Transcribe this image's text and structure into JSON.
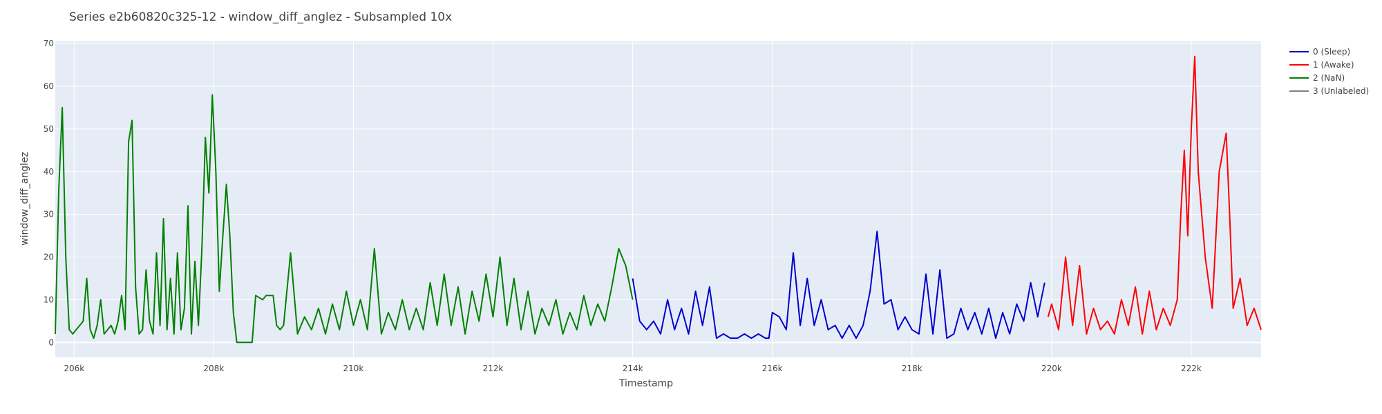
{
  "chart_data": {
    "type": "line",
    "title": "Series e2b60820c325-12 - window_diff_anglez - Subsampled 10x",
    "xlabel": "Timestamp",
    "ylabel": "window_diff_anglez",
    "xlim": [
      205730,
      223000
    ],
    "ylim": [
      -3.5,
      70.5
    ],
    "x_ticks": [
      206000,
      208000,
      210000,
      212000,
      214000,
      216000,
      218000,
      220000,
      222000
    ],
    "x_tick_labels": [
      "206k",
      "208k",
      "210k",
      "212k",
      "214k",
      "216k",
      "218k",
      "220k",
      "222k"
    ],
    "y_ticks": [
      0,
      10,
      20,
      30,
      40,
      50,
      60,
      70
    ],
    "y_tick_labels": [
      "0",
      "10",
      "20",
      "30",
      "40",
      "50",
      "60",
      "70"
    ],
    "grid": true,
    "legend_position": "top-right",
    "plot_bgcolor": "#e5ecf6",
    "series": [
      {
        "name": "0 (Sleep)",
        "color": "#0000cc",
        "x": [
          214000,
          214100,
          214200,
          214300,
          214400,
          214500,
          214600,
          214700,
          214800,
          214900,
          215000,
          215100,
          215200,
          215300,
          215400,
          215500,
          215600,
          215700,
          215800,
          215900,
          215950,
          216000,
          216100,
          216200,
          216300,
          216400,
          216500,
          216600,
          216700,
          216800,
          216900,
          217000,
          217100,
          217200,
          217300,
          217400,
          217500,
          217600,
          217700,
          217800,
          217900,
          218000,
          218100,
          218200,
          218300,
          218400,
          218500,
          218600,
          218700,
          218800,
          218900,
          219000,
          219100,
          219200,
          219300,
          219400,
          219500,
          219600,
          219700,
          219800,
          219900
        ],
        "y": [
          15,
          5,
          3,
          5,
          2,
          10,
          3,
          8,
          2,
          12,
          4,
          13,
          1,
          2,
          1,
          1,
          2,
          1,
          2,
          1,
          1,
          7,
          6,
          3,
          21,
          4,
          15,
          4,
          10,
          3,
          4,
          1,
          4,
          1,
          4,
          12,
          26,
          9,
          10,
          3,
          6,
          3,
          2,
          16,
          2,
          17,
          1,
          2,
          8,
          3,
          7,
          2,
          8,
          1,
          7,
          2,
          9,
          5,
          14,
          6,
          14
        ]
      },
      {
        "name": "1 (Awake)",
        "color": "#ff0000",
        "x": [
          219950,
          220000,
          220100,
          220200,
          220300,
          220400,
          220500,
          220600,
          220700,
          220800,
          220900,
          221000,
          221100,
          221200,
          221300,
          221400,
          221500,
          221600,
          221700,
          221800,
          221850,
          221900,
          221950,
          222000,
          222050,
          222100,
          222150,
          222200,
          222300,
          222400,
          222500,
          222550,
          222600,
          222700,
          222800,
          222900,
          223000
        ],
        "y": [
          6,
          9,
          3,
          20,
          4,
          18,
          2,
          8,
          3,
          5,
          2,
          10,
          4,
          13,
          2,
          12,
          3,
          8,
          4,
          10,
          30,
          45,
          25,
          50,
          67,
          40,
          30,
          20,
          8,
          40,
          49,
          30,
          8,
          15,
          4,
          8,
          3
        ]
      },
      {
        "name": "2 (NaN)",
        "color": "#008000",
        "x": [
          205730,
          205780,
          205830,
          205880,
          205930,
          205980,
          206030,
          206080,
          206130,
          206180,
          206230,
          206280,
          206330,
          206380,
          206430,
          206480,
          206530,
          206580,
          206630,
          206680,
          206730,
          206780,
          206830,
          206880,
          206930,
          206980,
          207030,
          207080,
          207130,
          207180,
          207230,
          207280,
          207330,
          207380,
          207430,
          207480,
          207530,
          207580,
          207630,
          207680,
          207730,
          207780,
          207830,
          207880,
          207930,
          207980,
          208030,
          208080,
          208130,
          208180,
          208230,
          208280,
          208330,
          208380,
          208430,
          208480,
          208550,
          208600,
          208700,
          208750,
          208800,
          208850,
          208900,
          208950,
          209000,
          209100,
          209200,
          209300,
          209400,
          209500,
          209600,
          209700,
          209800,
          209900,
          210000,
          210100,
          210200,
          210300,
          210400,
          210500,
          210600,
          210700,
          210800,
          210900,
          211000,
          211100,
          211200,
          211300,
          211400,
          211500,
          211600,
          211700,
          211800,
          211900,
          212000,
          212100,
          212200,
          212300,
          212400,
          212500,
          212600,
          212700,
          212800,
          212900,
          213000,
          213100,
          213200,
          213300,
          213400,
          213500,
          213600,
          213700,
          213800,
          213900,
          214000
        ],
        "y": [
          2,
          36,
          55,
          20,
          3,
          2,
          3,
          4,
          5,
          15,
          3,
          1,
          4,
          10,
          2,
          3,
          4,
          2,
          5,
          11,
          3,
          47,
          52,
          13,
          2,
          3,
          17,
          5,
          2,
          21,
          4,
          29,
          3,
          15,
          2,
          21,
          3,
          8,
          32,
          2,
          19,
          4,
          22,
          48,
          35,
          58,
          40,
          12,
          25,
          37,
          25,
          7,
          0,
          0,
          0,
          0,
          0,
          11,
          10,
          11,
          11,
          11,
          4,
          3,
          4,
          21,
          2,
          6,
          3,
          8,
          2,
          9,
          3,
          12,
          4,
          10,
          3,
          22,
          2,
          7,
          3,
          10,
          3,
          8,
          3,
          14,
          4,
          16,
          4,
          13,
          2,
          12,
          5,
          16,
          6,
          20,
          4,
          15,
          3,
          12,
          2,
          8,
          4,
          10,
          2,
          7,
          3,
          11,
          4,
          9,
          5,
          13,
          22,
          18,
          10
        ]
      },
      {
        "name": "3 (Unlabeled)",
        "color": "#808080",
        "x": [],
        "y": []
      }
    ]
  }
}
